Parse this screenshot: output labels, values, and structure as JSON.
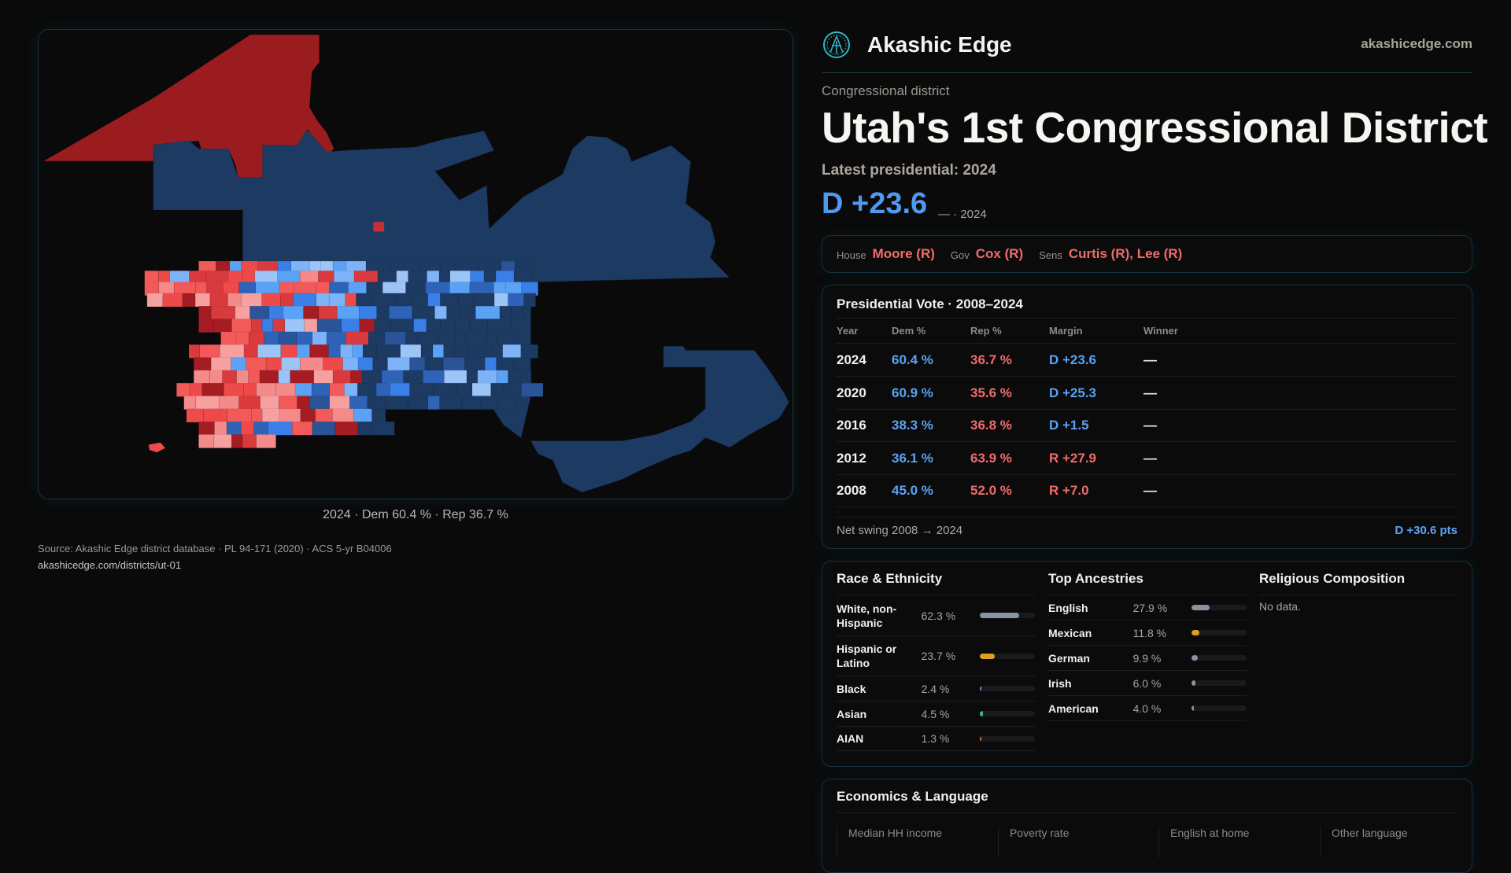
{
  "map": {
    "caption": "2024 · Dem 60.4 % · Rep 36.7 %"
  },
  "brand": {
    "name": "Akashic Edge",
    "site": "akashicedge.com",
    "logo_icon": "akashic-seal-icon"
  },
  "header": {
    "kicker": "Congressional district",
    "title": "Utah's 1st Congressional District",
    "latest": "Latest presidential: 2024",
    "margin": "D +23.6",
    "margin_sub": "— · 2024"
  },
  "officials": [
    {
      "label": "House",
      "value": "Moore (R)"
    },
    {
      "label": "Gov",
      "value": "Cox (R)"
    },
    {
      "label": "Sens",
      "value": "Curtis (R), Lee (R)"
    }
  ],
  "presidential": {
    "title": "Presidential Vote · 2008–2024",
    "headers": [
      "Year",
      "Dem %",
      "Rep %",
      "Margin",
      "Winner"
    ],
    "rows": [
      {
        "year": "2024",
        "dem": "60.4 %",
        "rep": "36.7 %",
        "margin": "D +23.6",
        "party": "D",
        "winner": "—"
      },
      {
        "year": "2020",
        "dem": "60.9 %",
        "rep": "35.6 %",
        "margin": "D +25.3",
        "party": "D",
        "winner": "—"
      },
      {
        "year": "2016",
        "dem": "38.3 %",
        "rep": "36.8 %",
        "margin": "D +1.5",
        "party": "D",
        "winner": "—"
      },
      {
        "year": "2012",
        "dem": "36.1 %",
        "rep": "63.9 %",
        "margin": "R +27.9",
        "party": "R",
        "winner": "—"
      },
      {
        "year": "2008",
        "dem": "45.0 %",
        "rep": "52.0 %",
        "margin": "R +7.0",
        "party": "R",
        "winner": "—"
      }
    ],
    "swing_label": "Net swing 2008 → 2024",
    "swing_value": "D +30.6 pts"
  },
  "race": {
    "title": "Race & Ethnicity",
    "items": [
      {
        "name": "White, non-Hispanic",
        "pct": "62.3 %",
        "value": 62.3,
        "color": "#8a93a6"
      },
      {
        "name": "Hispanic or Latino",
        "pct": "23.7 %",
        "value": 23.7,
        "color": "#e0a020"
      },
      {
        "name": "Black",
        "pct": "2.4 %",
        "value": 2.4,
        "color": "#8a7fd8"
      },
      {
        "name": "Asian",
        "pct": "4.5 %",
        "value": 4.5,
        "color": "#2fc08f"
      },
      {
        "name": "AIAN",
        "pct": "1.3 %",
        "value": 1.3,
        "color": "#d0702a"
      }
    ]
  },
  "ancestry": {
    "title": "Top Ancestries",
    "items": [
      {
        "name": "English",
        "pct": "27.9 %",
        "value": 27.9,
        "color": "#8a93a6"
      },
      {
        "name": "Mexican",
        "pct": "11.8 %",
        "value": 11.8,
        "color": "#e0a020"
      },
      {
        "name": "German",
        "pct": "9.9 %",
        "value": 9.9,
        "color": "#8a93a6"
      },
      {
        "name": "Irish",
        "pct": "6.0 %",
        "value": 6.0,
        "color": "#8a93a6"
      },
      {
        "name": "American",
        "pct": "4.0 %",
        "value": 4.0,
        "color": "#8a93a6"
      }
    ]
  },
  "religion": {
    "title": "Religious Composition",
    "empty": "No data."
  },
  "economics": {
    "title": "Economics & Language",
    "labels": [
      "Median HH income",
      "Poverty rate",
      "English at home",
      "Other language"
    ]
  },
  "footer": {
    "source": "Source: Akashic Edge district database · PL 94-171 (2020) · ACS 5-yr B04006",
    "url": "akashicedge.com/districts/ut-01"
  },
  "colors": {
    "dem": "#5aa2f5",
    "rep": "#f26b6b",
    "bg": "#0a0a0b"
  }
}
